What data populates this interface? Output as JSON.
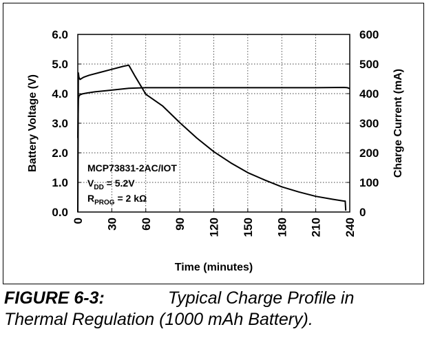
{
  "figure": {
    "number": "FIGURE 6-3:",
    "caption_line1": "Typical Charge Profile in",
    "caption_line2": "Thermal Regulation (1000 mAh Battery)."
  },
  "chart_data": {
    "type": "line",
    "xlabel": "Time (minutes)",
    "ylabel_left": "Battery Voltage (V)",
    "ylabel_right": "Charge Current (mA)",
    "xlim": [
      0,
      240
    ],
    "ylim_left": [
      0,
      6
    ],
    "ylim_right": [
      0,
      600
    ],
    "x_ticks": [
      "0",
      "30",
      "60",
      "90",
      "120",
      "150",
      "180",
      "210",
      "240"
    ],
    "y_ticks_left": [
      "0.0",
      "1.0",
      "2.0",
      "3.0",
      "4.0",
      "5.0",
      "6.0"
    ],
    "y_ticks_right": [
      "0",
      "100",
      "200",
      "300",
      "400",
      "500",
      "600"
    ],
    "grid": true,
    "annotation": {
      "line1": "MCP73831-2AC/IOT",
      "line2_main": "V",
      "line2_sub": "DD",
      "line2_rest": " = 5.2V",
      "line3_main": "R",
      "line3_sub": "PROG",
      "line3_rest": " = 2 kΩ"
    },
    "series": [
      {
        "axis": "left",
        "color": "#000000",
        "x": [
          0,
          0.5,
          1,
          2,
          4,
          8,
          15,
          25,
          35,
          45,
          60,
          90,
          120,
          150,
          180,
          210,
          235,
          238,
          240
        ],
        "y": [
          2.5,
          3.8,
          3.92,
          3.96,
          3.99,
          4.02,
          4.06,
          4.1,
          4.14,
          4.18,
          4.2,
          4.2,
          4.2,
          4.2,
          4.2,
          4.2,
          4.21,
          4.2,
          4.17
        ]
      },
      {
        "axis": "right",
        "color": "#000000",
        "x": [
          0,
          0.5,
          1,
          2,
          5,
          10,
          20,
          30,
          40,
          45,
          50,
          60,
          75,
          90,
          105,
          120,
          135,
          150,
          165,
          180,
          195,
          210,
          225,
          235,
          236,
          236.5
        ],
        "y": [
          0,
          470,
          455,
          448,
          455,
          462,
          472,
          482,
          492,
          496,
          462,
          398,
          358,
          302,
          250,
          204,
          166,
          133,
          108,
          85,
          68,
          53,
          43,
          37,
          37,
          5
        ]
      }
    ]
  }
}
